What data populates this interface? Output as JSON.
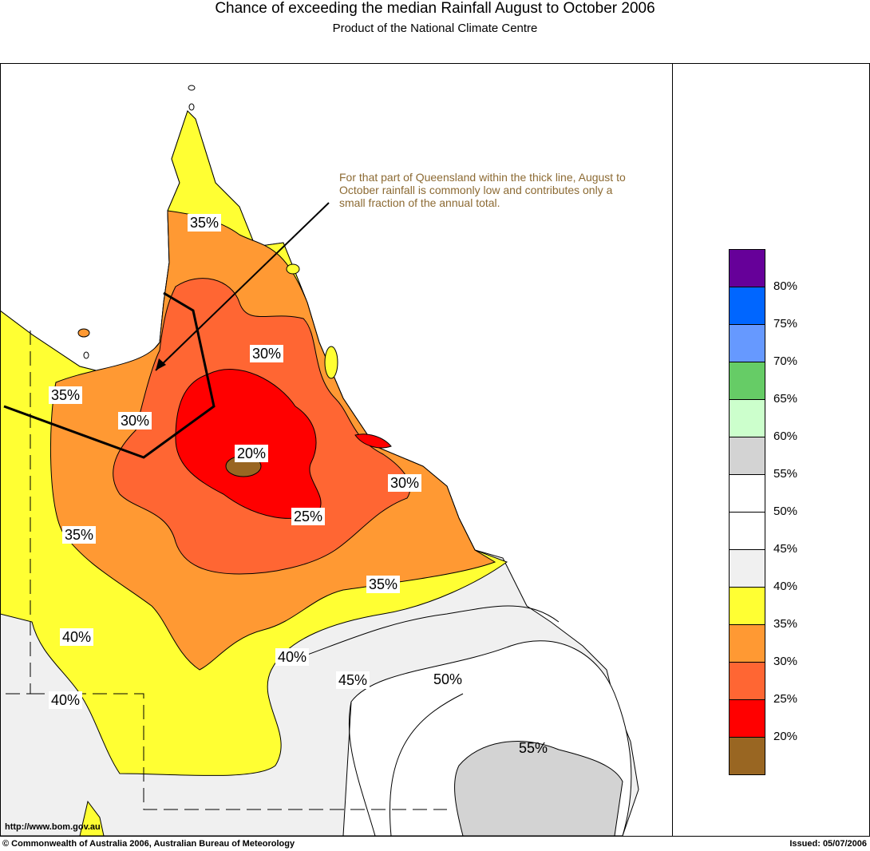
{
  "header": {
    "title": "Chance of exceeding the median Rainfall August to October 2006",
    "subtitle": "Product of the National Climate Centre"
  },
  "annotation": {
    "note": "For that part of Queensland within the thick line, August to October rainfall is commonly low and contributes only a small fraction of the annual total."
  },
  "contour_labels": [
    "35%",
    "30%",
    "35%",
    "30%",
    "20%",
    "30%",
    "25%",
    "35%",
    "35%",
    "40%",
    "40%",
    "40%",
    "45%",
    "50%",
    "55%"
  ],
  "legend": {
    "items": [
      {
        "color": "#660099",
        "label": "80%"
      },
      {
        "color": "#0066ff",
        "label": "75%"
      },
      {
        "color": "#6699ff",
        "label": "70%"
      },
      {
        "color": "#66cc66",
        "label": "65%"
      },
      {
        "color": "#ccffcc",
        "label": "60%"
      },
      {
        "color": "#d3d3d3",
        "label": "55%"
      },
      {
        "color": "#ffffff",
        "label": "50%"
      },
      {
        "color": "#ffffff",
        "label": "45%"
      },
      {
        "color": "#f0f0f0",
        "label": "40%"
      },
      {
        "color": "#ffff33",
        "label": "35%"
      },
      {
        "color": "#ff9933",
        "label": "30%"
      },
      {
        "color": "#ff6633",
        "label": "25%"
      },
      {
        "color": "#ff0000",
        "label": "20%"
      },
      {
        "color": "#996622",
        "label": ""
      }
    ]
  },
  "footer": {
    "url": "http://www.bom.gov.au",
    "copyright": "© Commonwealth of Australia 2006, Australian Bureau of Meteorology",
    "issued": "Issued: 05/07/2006"
  }
}
